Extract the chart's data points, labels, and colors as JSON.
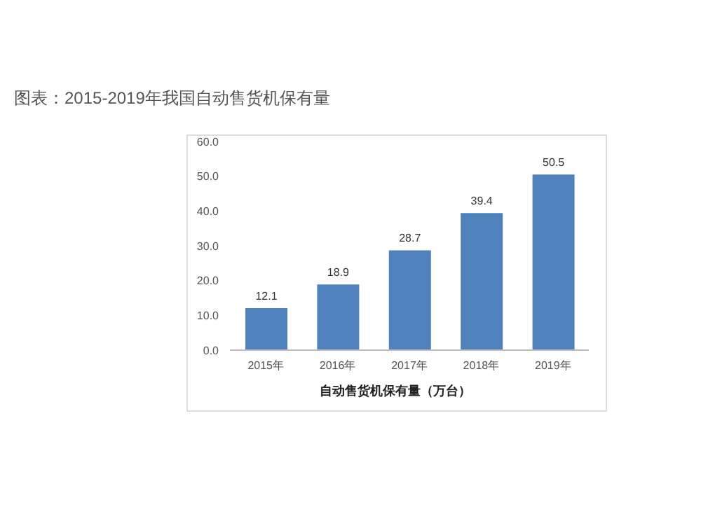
{
  "chart_data": {
    "type": "bar",
    "title": "图表：2015-2019年我国自动售货机保有量",
    "xlabel": "自动售货机保有量（万台）",
    "categories": [
      "2015年",
      "2016年",
      "2017年",
      "2018年",
      "2019年"
    ],
    "values": [
      12.1,
      18.9,
      28.7,
      39.4,
      50.5
    ],
    "color": "#4f81bd",
    "ylim": [
      0,
      60
    ],
    "yticks": [
      {
        "value": 0,
        "label": "0.0"
      },
      {
        "value": 10,
        "label": "10.0"
      },
      {
        "value": 20,
        "label": "20.0"
      },
      {
        "value": 30,
        "label": "30.0"
      },
      {
        "value": 40,
        "label": "40.0"
      },
      {
        "value": 50,
        "label": "50.0"
      },
      {
        "value": 60,
        "label": "60.0"
      }
    ],
    "data_labels": true,
    "grid": false,
    "legend": false
  }
}
